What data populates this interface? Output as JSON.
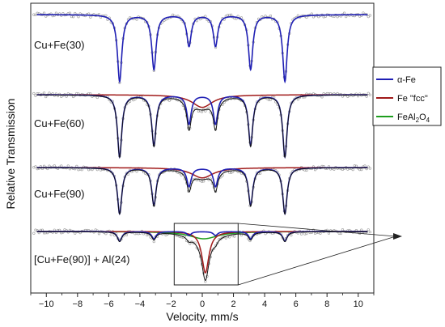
{
  "chart_data": {
    "type": "line",
    "title": "",
    "xlabel": "Velocity, mm/s",
    "ylabel": "Relative Transmission",
    "xlim": [
      -11,
      11
    ],
    "xticks": [
      -10,
      -8,
      -6,
      -4,
      -2,
      0,
      2,
      4,
      6,
      8,
      10
    ],
    "legend": {
      "placement": "right",
      "entries": [
        {
          "label": "α-Fe",
          "color": "#1f1fb4"
        },
        {
          "label": "Fe \"fcc\"",
          "color": "#a01a1a"
        },
        {
          "label": "FeAl",
          "sub1": "2",
          "mid": "O",
          "sub2": "4",
          "color": "#1e9e1e"
        }
      ]
    },
    "colors": {
      "alpha_fe": "#1f1fb4",
      "fe_fcc": "#a01a1a",
      "fe_al2o4": "#1e9e1e",
      "data_points": "#9a9a9a"
    },
    "sextet_line_positions": [
      -5.3,
      -3.1,
      -0.85,
      0.85,
      3.1,
      5.3
    ],
    "spectra": [
      {
        "label": "Cu+Fe(30)",
        "alpha_fe_depths": [
          0.98,
          0.8,
          0.46,
          0.46,
          0.8,
          0.98
        ],
        "fe_fcc": null,
        "fe_al2o4": null
      },
      {
        "label": "Cu+Fe(60)",
        "alpha_fe_depths": [
          0.98,
          0.8,
          0.46,
          0.46,
          0.8,
          0.98
        ],
        "fe_fcc": {
          "center": 0.0,
          "depth": 0.2,
          "width": 1.6
        },
        "fe_al2o4": null
      },
      {
        "label": "Cu+Fe(90)",
        "alpha_fe_depths": [
          0.98,
          0.8,
          0.4,
          0.4,
          0.8,
          0.98
        ],
        "fe_fcc": {
          "center": 0.0,
          "depth": 0.22,
          "width": 1.7
        },
        "fe_al2o4": null
      },
      {
        "label": "[Cu+Fe(90)] + Al(24)",
        "alpha_fe_depths": [
          0.2,
          0.15,
          0.08,
          0.08,
          0.15,
          0.2
        ],
        "fe_fcc": {
          "center": 0.2,
          "depth": 0.85,
          "width": 0.55
        },
        "fe_al2o4": {
          "center": 0.1,
          "depth": 0.15,
          "width": 2.2
        }
      }
    ],
    "inset_box": {
      "x_range": [
        -1.8,
        2.3
      ]
    }
  }
}
